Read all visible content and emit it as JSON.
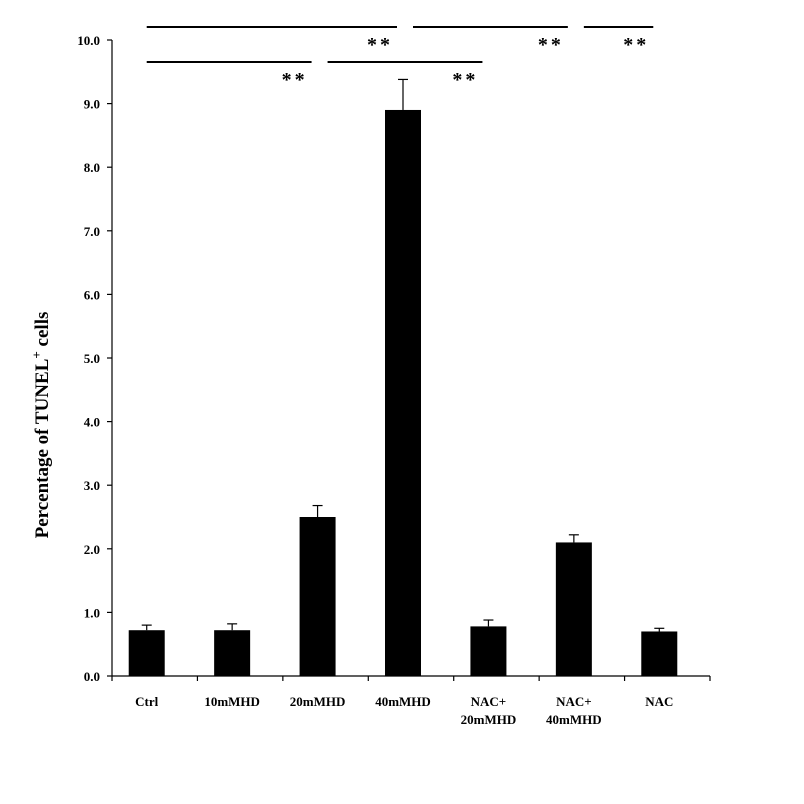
{
  "chart_data": {
    "type": "bar",
    "categories": [
      [
        "Ctrl"
      ],
      [
        "10mMHD"
      ],
      [
        "20mMHD"
      ],
      [
        "40mMHD"
      ],
      [
        "NAC+",
        "20mMHD"
      ],
      [
        "NAC+",
        "40mMHD"
      ],
      [
        "NAC"
      ]
    ],
    "values": [
      0.72,
      0.72,
      2.5,
      8.9,
      0.78,
      2.1,
      0.7
    ],
    "errors": [
      0.08,
      0.1,
      0.18,
      0.48,
      0.1,
      0.12,
      0.05
    ],
    "ylabel": "Percentage of TUNEL",
    "ylabel_sup": "+",
    "ylabel_suffix": " cells",
    "ylim": [
      0.0,
      10.0
    ],
    "yticks": [
      "0.0",
      "1.0",
      "2.0",
      "3.0",
      "4.0",
      "5.0",
      "6.0",
      "7.0",
      "8.0",
      "9.0",
      "10.0"
    ],
    "bar_color": "#000000",
    "significance": [
      {
        "from": 0,
        "to": 3,
        "label": "**",
        "row": "top"
      },
      {
        "from": 3,
        "to": 5,
        "label": "**",
        "row": "top"
      },
      {
        "from": 5,
        "to": 6,
        "label": "**",
        "row": "top"
      },
      {
        "from": 0,
        "to": 2,
        "label": "**",
        "row": "lower"
      },
      {
        "from": 2,
        "to": 4,
        "label": "**",
        "row": "lower"
      }
    ]
  }
}
